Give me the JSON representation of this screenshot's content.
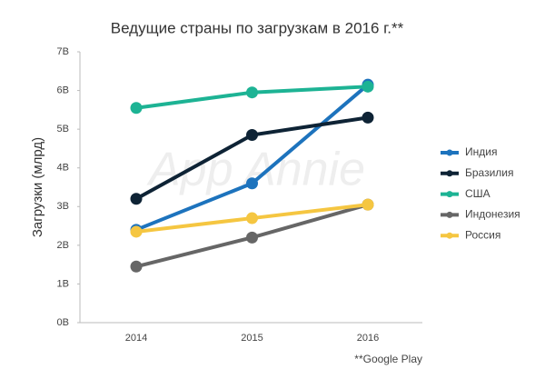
{
  "chart_data": {
    "type": "line",
    "title": "Ведущие страны по загрузкам в 2016 г.**",
    "y_label": "Загрузки (млрд)",
    "watermark": "App Annie",
    "footnote": "**Google Play",
    "categories": [
      "2014",
      "2015",
      "2016"
    ],
    "series": [
      {
        "name": "Индия",
        "color": "#1d73bd",
        "values": [
          2.4,
          3.6,
          6.15
        ]
      },
      {
        "name": "Бразилия",
        "color": "#0e2335",
        "values": [
          3.2,
          4.85,
          5.3
        ]
      },
      {
        "name": "США",
        "color": "#1db394",
        "values": [
          5.55,
          5.95,
          6.1
        ]
      },
      {
        "name": "Индонезия",
        "color": "#666666",
        "values": [
          1.45,
          2.2,
          3.05
        ]
      },
      {
        "name": "Россия",
        "color": "#f5c641",
        "values": [
          2.35,
          2.7,
          3.05
        ]
      }
    ],
    "ylim": [
      0,
      7
    ],
    "yticks": [
      {
        "value": 0,
        "label": "0B"
      },
      {
        "value": 1,
        "label": "1B"
      },
      {
        "value": 2,
        "label": "2B"
      },
      {
        "value": 3,
        "label": "3B"
      },
      {
        "value": 4,
        "label": "4B"
      },
      {
        "value": 5,
        "label": "5B"
      },
      {
        "value": 6,
        "label": "6B"
      },
      {
        "value": 7,
        "label": "7B"
      }
    ],
    "legend": "right"
  }
}
